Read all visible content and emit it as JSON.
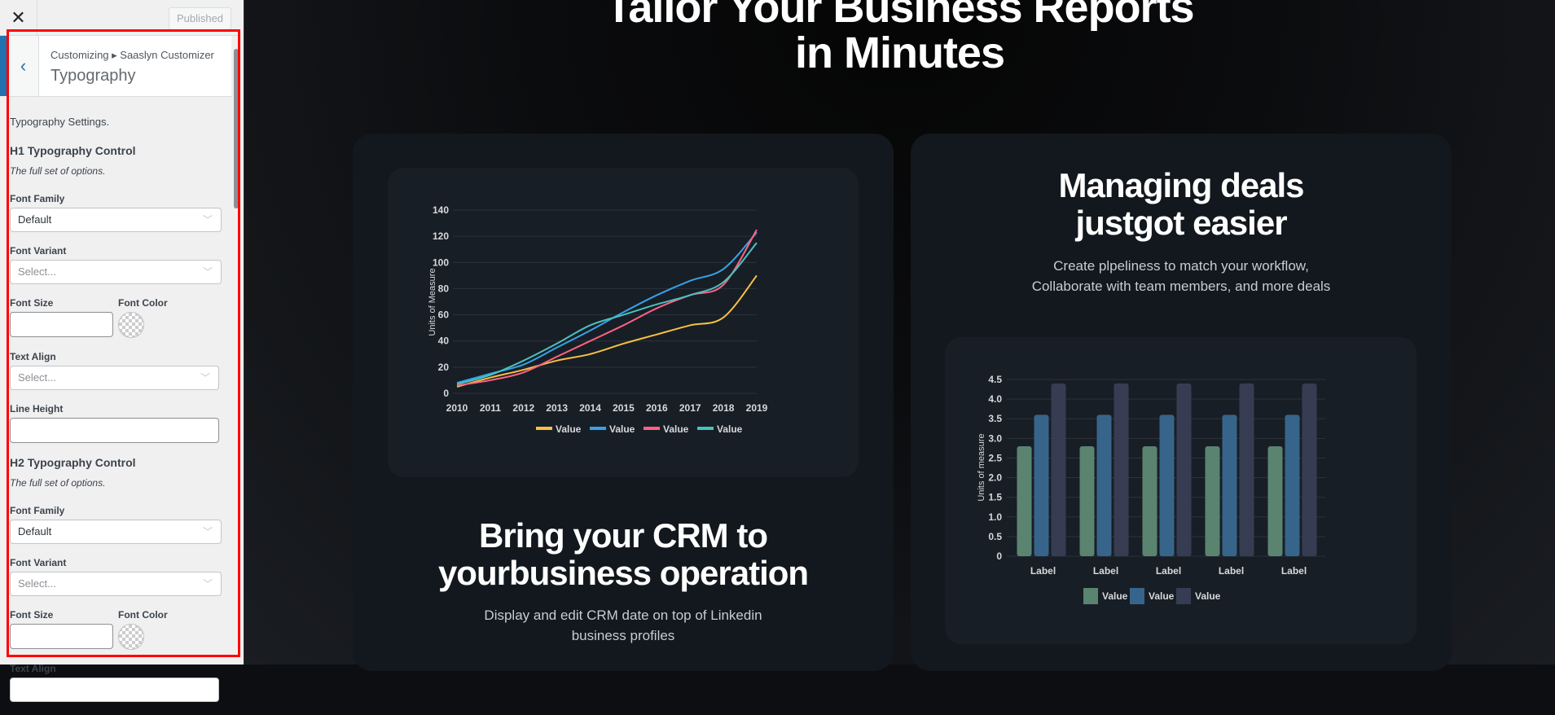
{
  "sidebar": {
    "close_icon": "close-icon",
    "published_label": "Published",
    "breadcrumb": "Customizing ▸ Saaslyn Customizer",
    "section_title": "Typography",
    "description": "Typography Settings.",
    "h1": {
      "title": "H1 Typography Control",
      "subtitle": "The full set of options.",
      "font_family_label": "Font Family",
      "font_family_value": "Default",
      "font_variant_label": "Font Variant",
      "font_variant_placeholder": "Select...",
      "font_size_label": "Font Size",
      "font_color_label": "Font Color",
      "text_align_label": "Text Align",
      "text_align_placeholder": "Select...",
      "line_height_label": "Line Height"
    },
    "h2": {
      "title": "H2 Typography Control",
      "subtitle": "The full set of options.",
      "font_family_label": "Font Family",
      "font_family_value": "Default",
      "font_variant_label": "Font Variant",
      "font_variant_placeholder": "Select...",
      "font_size_label": "Font Size",
      "font_color_label": "Font Color",
      "text_align_label": "Text Align"
    }
  },
  "preview": {
    "hero_line1": "Tailor Your Business Reports",
    "hero_line2": "in Minutes",
    "left_card": {
      "title_line1": "Bring your CRM to",
      "title_line2": "yourbusiness operation",
      "sub_line1": "Display and edit CRM date on top of Linkedin",
      "sub_line2": "business profiles"
    },
    "right_card": {
      "title_line1": "Managing deals",
      "title_line2": "justgot easier",
      "sub_line1": "Create plpeliness to match your workflow,",
      "sub_line2": "Collaborate with team members, and more deals"
    }
  },
  "chart_data": [
    {
      "type": "line",
      "ylabel": "Units of Measure",
      "ylim": [
        0,
        140
      ],
      "yticks": [
        0,
        20,
        40,
        60,
        80,
        100,
        120,
        140
      ],
      "grid": true,
      "legend": "bottom",
      "x": [
        "2010",
        "2011",
        "2012",
        "2013",
        "2014",
        "2015",
        "2016",
        "2017",
        "2018",
        "2019"
      ],
      "series": [
        {
          "name": "Value",
          "color": "#f5c144",
          "values": [
            5,
            12,
            18,
            25,
            30,
            38,
            45,
            52,
            58,
            90
          ]
        },
        {
          "name": "Value",
          "color": "#36a2eb",
          "values": [
            8,
            15,
            22,
            35,
            48,
            62,
            75,
            86,
            95,
            123
          ]
        },
        {
          "name": "Value",
          "color": "#ff6384",
          "values": [
            6,
            10,
            16,
            28,
            40,
            52,
            65,
            75,
            83,
            125
          ]
        },
        {
          "name": "Value",
          "color": "#4bc0c0",
          "values": [
            7,
            14,
            25,
            38,
            52,
            60,
            68,
            75,
            85,
            115
          ]
        }
      ]
    },
    {
      "type": "bar",
      "ylabel": "Units of measure",
      "ylim": [
        0,
        4.5
      ],
      "yticks": [
        "0",
        "0.5",
        "1.0",
        "1.5",
        "2.0",
        "2.5",
        "3.0",
        "3.5",
        "4.0",
        "4.5"
      ],
      "grid": true,
      "legend": "bottom",
      "categories": [
        "Label",
        "Label",
        "Label",
        "Label",
        "Label"
      ],
      "series": [
        {
          "name": "Value",
          "color": "#5a8470",
          "values": [
            2.8,
            2.8,
            2.8,
            2.8,
            2.8
          ]
        },
        {
          "name": "Value",
          "color": "#37648a",
          "values": [
            3.6,
            3.6,
            3.6,
            3.6,
            3.6
          ]
        },
        {
          "name": "Value",
          "color": "#363d52",
          "values": [
            4.4,
            4.4,
            4.4,
            4.4,
            4.4
          ]
        }
      ]
    }
  ]
}
